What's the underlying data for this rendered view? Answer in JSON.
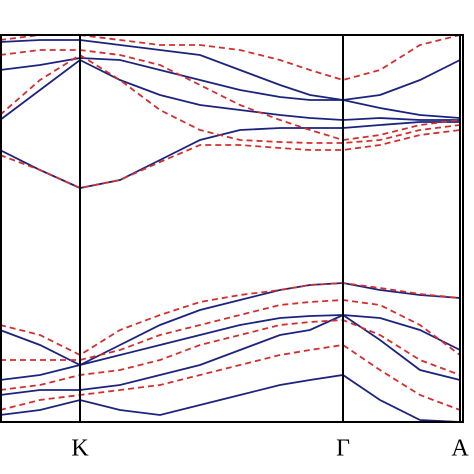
{
  "chart_data": {
    "type": "line",
    "x": [
      0,
      0.4,
      0.8,
      1.2,
      1.6,
      2.0,
      2.4,
      2.8,
      3.1,
      3.43,
      3.8,
      4.2,
      4.6
    ],
    "xlim": [
      0,
      4.63
    ],
    "xticks": [
      {
        "value": 0.8,
        "label": "K"
      },
      {
        "value": 3.43,
        "label": "Γ"
      },
      {
        "value": 4.6,
        "label": "A"
      }
    ],
    "ylim": [
      -1.82,
      2.05
    ],
    "grid": true,
    "series": [
      {
        "color": "#1a237e",
        "dashed": false,
        "values": [
          0.9,
          0.7,
          0.52,
          0.6,
          0.8,
          1.0,
          1.1,
          1.12,
          1.12,
          1.12,
          1.15,
          1.18,
          1.18
        ]
      },
      {
        "color": "#1a237e",
        "dashed": false,
        "values": [
          1.2,
          1.5,
          1.8,
          1.6,
          1.45,
          1.35,
          1.3,
          1.25,
          1.22,
          1.2,
          1.22,
          1.2,
          1.2
        ]
      },
      {
        "color": "#1a237e",
        "dashed": false,
        "values": [
          1.7,
          1.75,
          1.82,
          1.8,
          1.7,
          1.6,
          1.5,
          1.43,
          1.4,
          1.4,
          1.32,
          1.25,
          1.22
        ]
      },
      {
        "color": "#1a237e",
        "dashed": false,
        "values": [
          1.98,
          2.0,
          2.0,
          1.95,
          1.9,
          1.85,
          1.7,
          1.55,
          1.45,
          1.4,
          1.45,
          1.6,
          1.8
        ]
      },
      {
        "color": "#1a237e",
        "dashed": false,
        "values": [
          -0.9,
          -1.05,
          -1.25,
          -1.05,
          -0.85,
          -0.7,
          -0.6,
          -0.5,
          -0.45,
          -0.43,
          -0.5,
          -0.55,
          -0.58
        ]
      },
      {
        "color": "#1a237e",
        "dashed": false,
        "values": [
          -1.4,
          -1.35,
          -1.25,
          -1.15,
          -1.05,
          -0.95,
          -0.85,
          -0.78,
          -0.76,
          -0.75,
          -0.78,
          -0.9,
          -1.1
        ]
      },
      {
        "color": "#1a237e",
        "dashed": false,
        "values": [
          -1.55,
          -1.5,
          -1.5,
          -1.45,
          -1.35,
          -1.25,
          -1.1,
          -0.95,
          -0.9,
          -0.75,
          -1.0,
          -1.3,
          -1.4
        ]
      },
      {
        "color": "#1a237e",
        "dashed": false,
        "values": [
          -1.75,
          -1.7,
          -1.6,
          -1.7,
          -1.75,
          -1.65,
          -1.55,
          -1.45,
          -1.4,
          -1.35,
          -1.6,
          -1.8,
          -1.82
        ]
      },
      {
        "color": "#d32f2f",
        "dashed": true,
        "values": [
          0.85,
          0.7,
          0.52,
          0.6,
          0.78,
          0.95,
          0.95,
          0.92,
          0.9,
          0.9,
          0.95,
          1.05,
          1.1
        ]
      },
      {
        "color": "#d32f2f",
        "dashed": true,
        "values": [
          1.25,
          1.6,
          1.85,
          1.6,
          1.3,
          1.1,
          1.0,
          0.98,
          0.97,
          0.97,
          1.0,
          1.1,
          1.15
        ]
      },
      {
        "color": "#d32f2f",
        "dashed": true,
        "values": [
          1.85,
          1.9,
          1.9,
          1.85,
          1.75,
          1.55,
          1.35,
          1.2,
          1.1,
          1.0,
          1.05,
          1.15,
          1.2
        ]
      },
      {
        "color": "#d32f2f",
        "dashed": true,
        "values": [
          2.0,
          2.05,
          2.05,
          2.0,
          1.95,
          1.95,
          1.9,
          1.8,
          1.7,
          1.6,
          1.7,
          1.95,
          2.05
        ]
      },
      {
        "color": "#d32f2f",
        "dashed": true,
        "values": [
          -0.85,
          -0.95,
          -1.15,
          -0.9,
          -0.75,
          -0.62,
          -0.55,
          -0.5,
          -0.45,
          -0.43,
          -0.48,
          -0.54,
          -0.58
        ]
      },
      {
        "color": "#d32f2f",
        "dashed": true,
        "values": [
          -1.2,
          -1.2,
          -1.2,
          -1.1,
          -0.95,
          -0.85,
          -0.75,
          -0.65,
          -0.62,
          -0.6,
          -0.65,
          -0.85,
          -1.15
        ]
      },
      {
        "color": "#d32f2f",
        "dashed": true,
        "values": [
          -1.5,
          -1.45,
          -1.35,
          -1.3,
          -1.2,
          -1.05,
          -0.95,
          -0.85,
          -0.82,
          -0.8,
          -0.95,
          -1.2,
          -1.35
        ]
      },
      {
        "color": "#d32f2f",
        "dashed": true,
        "values": [
          -1.7,
          -1.6,
          -1.55,
          -1.5,
          -1.45,
          -1.35,
          -1.25,
          -1.15,
          -1.1,
          -1.05,
          -1.3,
          -1.55,
          -1.7
        ]
      }
    ]
  }
}
